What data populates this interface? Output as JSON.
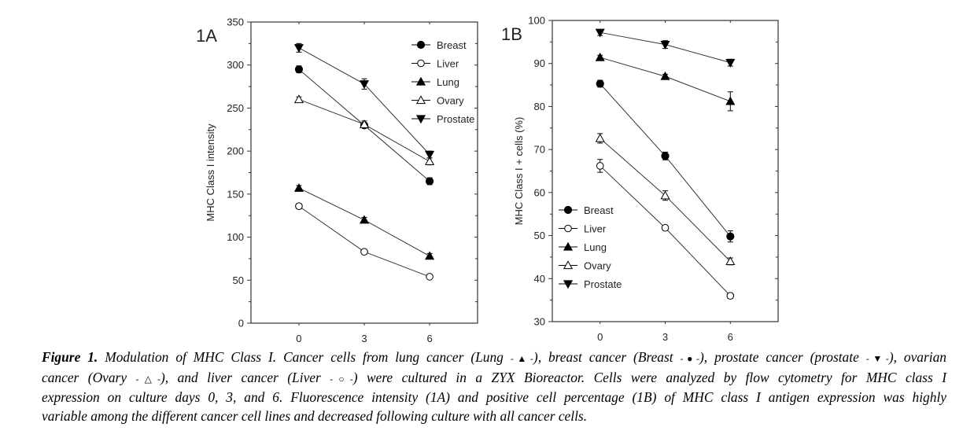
{
  "chart_data": [
    {
      "type": "line",
      "panel_label": "1A",
      "title": "",
      "xlabel": "",
      "ylabel": "MHC Class I intensity",
      "x": [
        0,
        3,
        6
      ],
      "x_ticks": [
        "0",
        "3",
        "6"
      ],
      "xlim": [
        -2.2,
        8.2
      ],
      "ylim": [
        0,
        350
      ],
      "y_ticks": [
        "0",
        "50",
        "100",
        "150",
        "200",
        "250",
        "300",
        "350"
      ],
      "y_tick_values": [
        0,
        50,
        100,
        150,
        200,
        250,
        300,
        350
      ],
      "grid": false,
      "legend_position": "top-right",
      "series": [
        {
          "name": "Breast",
          "marker": "filled-circle",
          "values": [
            295,
            230,
            165
          ],
          "errors": [
            4,
            3,
            4
          ]
        },
        {
          "name": "Liver",
          "marker": "open-circle",
          "values": [
            136,
            83,
            54
          ],
          "errors": [
            3,
            2,
            2
          ]
        },
        {
          "name": "Lung",
          "marker": "filled-triangle-up",
          "values": [
            157,
            120,
            78
          ],
          "errors": [
            3,
            3,
            3
          ]
        },
        {
          "name": "Ovary",
          "marker": "open-triangle-up",
          "values": [
            260,
            231,
            188
          ],
          "errors": [
            3,
            4,
            4
          ]
        },
        {
          "name": "Prostate",
          "marker": "filled-triangle-down",
          "values": [
            320,
            278,
            196
          ],
          "errors": [
            5,
            6,
            4
          ]
        }
      ]
    },
    {
      "type": "line",
      "panel_label": "1B",
      "title": "",
      "xlabel": "",
      "ylabel": "MHC Class I + cells  (%)",
      "x": [
        0,
        3,
        6
      ],
      "x_ticks": [
        "0",
        "3",
        "6"
      ],
      "xlim": [
        -2.2,
        8.2
      ],
      "ylim": [
        30,
        100
      ],
      "y_ticks": [
        "30",
        "40",
        "50",
        "60",
        "70",
        "80",
        "90",
        "100"
      ],
      "y_tick_values": [
        30,
        40,
        50,
        60,
        70,
        80,
        90,
        100
      ],
      "grid": false,
      "legend_position": "bottom-left",
      "series": [
        {
          "name": "Breast",
          "marker": "filled-circle",
          "values": [
            85.3,
            68.5,
            49.8
          ],
          "errors": [
            0.8,
            0.9,
            1.3
          ]
        },
        {
          "name": "Liver",
          "marker": "open-circle",
          "values": [
            66.2,
            51.8,
            36.0
          ],
          "errors": [
            1.5,
            0.6,
            0.6
          ]
        },
        {
          "name": "Lung",
          "marker": "filled-triangle-up",
          "values": [
            91.4,
            87.0,
            81.2
          ],
          "errors": [
            0.5,
            0.5,
            2.2
          ]
        },
        {
          "name": "Ovary",
          "marker": "open-triangle-up",
          "values": [
            72.6,
            59.3,
            44.0
          ],
          "errors": [
            1.1,
            1.1,
            0.8
          ]
        },
        {
          "name": "Prostate",
          "marker": "filled-triangle-down",
          "values": [
            97.2,
            94.4,
            90.2
          ],
          "errors": [
            0.7,
            0.9,
            0.8
          ]
        }
      ]
    }
  ],
  "caption": {
    "label": "Figure 1.",
    "line1": " Modulation of MHC Class I. Cancer cells from lung cancer (Lung ",
    "sym_lung": "-▲-",
    "line1b": "), breast cancer (Breast ",
    "sym_breast": "-●-",
    "line1c": "), prostate cancer (prostate ",
    "sym_prostate": "-▼-",
    "line1d": "), ovarian",
    "line2a": "cancer (Ovary ",
    "sym_ovary": "-△-",
    "line2b": "), and liver cancer (Liver ",
    "sym_liver": "-○-",
    "line2c": ") were cultured in a ZYX Bioreactor. Cells were analyzed by flow cytometry for MHC class I",
    "line3": "expression on culture days 0, 3, and 6. Fluorescence intensity (1A) and positive cell percentage (1B) of MHC class I antigen expression was highly",
    "line4": "variable among the different cancer cell lines and decreased following culture with all cancer cells."
  }
}
